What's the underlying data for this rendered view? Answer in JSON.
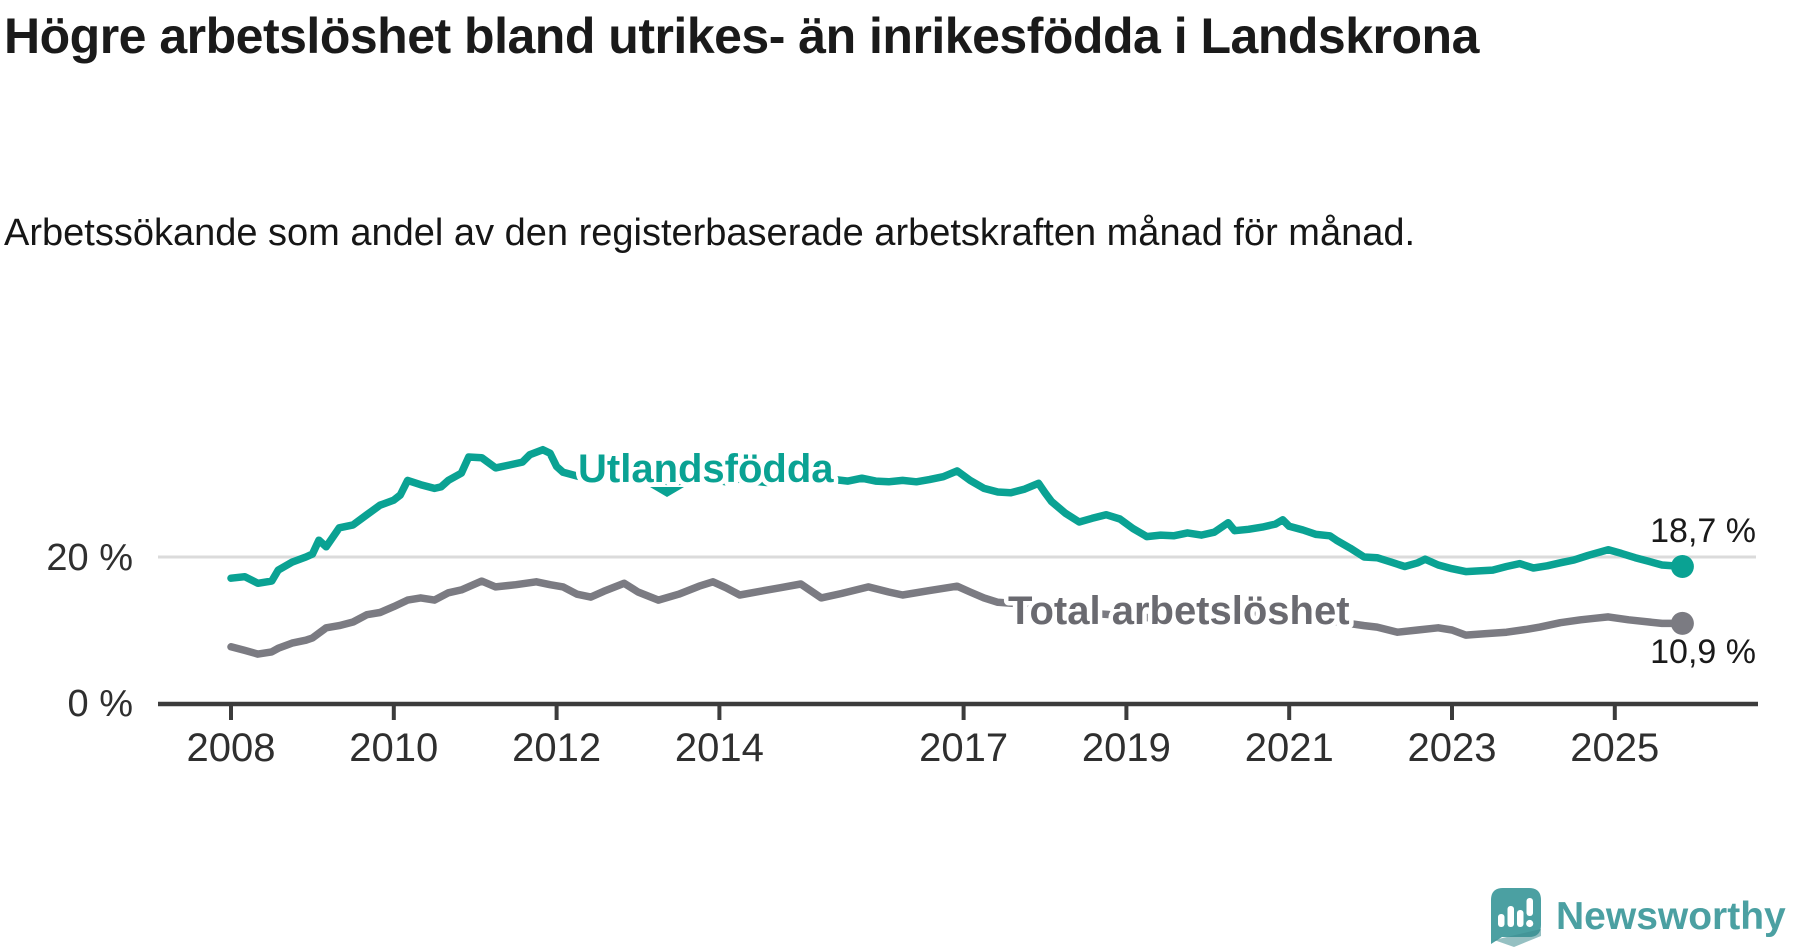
{
  "header": {
    "title": "Högre arbetslöshet bland utrikes- än inrikesfödda i Landskrona",
    "subtitle": "Arbetssökande som andel av den registerbaserade arbetskraften månad för månad."
  },
  "chart_data": {
    "type": "line",
    "unit": "%",
    "grid": "horizontal-20-only",
    "legend_position": "inline-labels-on-lines",
    "x_axis": {
      "ticks": [
        {
          "year": 2008,
          "label": "2008"
        },
        {
          "year": 2010,
          "label": "2010"
        },
        {
          "year": 2012,
          "label": "2012"
        },
        {
          "year": 2014,
          "label": "2014"
        },
        {
          "year": 2017,
          "label": "2017"
        },
        {
          "year": 2019,
          "label": "2019"
        },
        {
          "year": 2021,
          "label": "2021"
        },
        {
          "year": 2023,
          "label": "2023"
        },
        {
          "year": 2025,
          "label": "2025"
        }
      ],
      "range_years": [
        2008,
        2025.83
      ]
    },
    "y_axis": {
      "ticks": [
        {
          "value": 0,
          "label": "0 %"
        },
        {
          "value": 20,
          "label": "20 %"
        }
      ],
      "range": [
        0,
        36
      ]
    },
    "series": [
      {
        "name": "Utlandsfödda",
        "color": "#0aa293",
        "end_label": "18,7 %",
        "end_value": 18.7,
        "points": [
          [
            2008.0,
            17.1
          ],
          [
            2008.17,
            17.3
          ],
          [
            2008.33,
            16.4
          ],
          [
            2008.5,
            16.7
          ],
          [
            2008.58,
            18.2
          ],
          [
            2008.75,
            19.3
          ],
          [
            2008.92,
            20.0
          ],
          [
            2009.0,
            20.4
          ],
          [
            2009.08,
            22.3
          ],
          [
            2009.17,
            21.4
          ],
          [
            2009.33,
            24.0
          ],
          [
            2009.5,
            24.4
          ],
          [
            2009.67,
            25.8
          ],
          [
            2009.83,
            27.1
          ],
          [
            2010.0,
            27.8
          ],
          [
            2010.08,
            28.5
          ],
          [
            2010.17,
            30.5
          ],
          [
            2010.33,
            29.9
          ],
          [
            2010.5,
            29.4
          ],
          [
            2010.58,
            29.6
          ],
          [
            2010.67,
            30.5
          ],
          [
            2010.83,
            31.5
          ],
          [
            2010.92,
            33.7
          ],
          [
            2011.08,
            33.6
          ],
          [
            2011.25,
            32.2
          ],
          [
            2011.42,
            32.6
          ],
          [
            2011.58,
            33.0
          ],
          [
            2011.67,
            34.0
          ],
          [
            2011.83,
            34.7
          ],
          [
            2011.92,
            34.2
          ],
          [
            2012.0,
            32.4
          ],
          [
            2012.08,
            31.6
          ],
          [
            2012.25,
            31.1
          ],
          [
            2012.42,
            30.6
          ],
          [
            2012.58,
            30.9
          ],
          [
            2012.75,
            31.1
          ],
          [
            2012.92,
            30.7
          ],
          [
            2013.08,
            30.3
          ],
          [
            2013.25,
            30.6
          ],
          [
            2013.42,
            30.2
          ],
          [
            2013.58,
            30.5
          ],
          [
            2013.75,
            30.9
          ],
          [
            2013.92,
            30.6
          ],
          [
            2014.08,
            30.3
          ],
          [
            2014.25,
            30.7
          ],
          [
            2014.42,
            30.4
          ],
          [
            2014.58,
            30.2
          ],
          [
            2014.75,
            30.6
          ],
          [
            2014.92,
            30.9
          ],
          [
            2015.08,
            30.5
          ],
          [
            2015.25,
            30.3
          ],
          [
            2015.42,
            30.6
          ],
          [
            2015.58,
            30.4
          ],
          [
            2015.75,
            30.8
          ],
          [
            2015.92,
            30.4
          ],
          [
            2016.08,
            30.3
          ],
          [
            2016.25,
            30.5
          ],
          [
            2016.42,
            30.3
          ],
          [
            2016.58,
            30.6
          ],
          [
            2016.75,
            31.0
          ],
          [
            2016.92,
            31.8
          ],
          [
            2017.08,
            30.5
          ],
          [
            2017.25,
            29.4
          ],
          [
            2017.42,
            28.9
          ],
          [
            2017.58,
            28.8
          ],
          [
            2017.75,
            29.3
          ],
          [
            2017.92,
            30.1
          ],
          [
            2018.0,
            28.8
          ],
          [
            2018.08,
            27.6
          ],
          [
            2018.25,
            26.0
          ],
          [
            2018.42,
            24.8
          ],
          [
            2018.58,
            25.3
          ],
          [
            2018.75,
            25.8
          ],
          [
            2018.92,
            25.2
          ],
          [
            2019.08,
            23.9
          ],
          [
            2019.25,
            22.8
          ],
          [
            2019.42,
            23.0
          ],
          [
            2019.58,
            22.9
          ],
          [
            2019.75,
            23.3
          ],
          [
            2019.92,
            23.0
          ],
          [
            2020.08,
            23.4
          ],
          [
            2020.25,
            24.7
          ],
          [
            2020.33,
            23.6
          ],
          [
            2020.5,
            23.8
          ],
          [
            2020.67,
            24.1
          ],
          [
            2020.83,
            24.5
          ],
          [
            2020.92,
            25.1
          ],
          [
            2021.0,
            24.2
          ],
          [
            2021.17,
            23.7
          ],
          [
            2021.33,
            23.1
          ],
          [
            2021.5,
            22.9
          ],
          [
            2021.58,
            22.3
          ],
          [
            2021.75,
            21.2
          ],
          [
            2021.92,
            20.0
          ],
          [
            2022.08,
            19.9
          ],
          [
            2022.25,
            19.3
          ],
          [
            2022.42,
            18.7
          ],
          [
            2022.58,
            19.2
          ],
          [
            2022.67,
            19.7
          ],
          [
            2022.83,
            18.9
          ],
          [
            2023.0,
            18.4
          ],
          [
            2023.17,
            18.0
          ],
          [
            2023.33,
            18.1
          ],
          [
            2023.5,
            18.2
          ],
          [
            2023.67,
            18.7
          ],
          [
            2023.83,
            19.1
          ],
          [
            2024.0,
            18.5
          ],
          [
            2024.17,
            18.8
          ],
          [
            2024.33,
            19.2
          ],
          [
            2024.5,
            19.6
          ],
          [
            2024.67,
            20.2
          ],
          [
            2024.92,
            21.0
          ],
          [
            2025.08,
            20.5
          ],
          [
            2025.25,
            19.9
          ],
          [
            2025.42,
            19.4
          ],
          [
            2025.58,
            18.9
          ],
          [
            2025.83,
            18.7
          ]
        ]
      },
      {
        "name": "Total arbetslöshet",
        "color": "#7b7b82",
        "label_color": "#6a6a70",
        "end_label": "10,9 %",
        "end_value": 10.9,
        "points": [
          [
            2008.0,
            7.7
          ],
          [
            2008.17,
            7.2
          ],
          [
            2008.33,
            6.7
          ],
          [
            2008.5,
            7.0
          ],
          [
            2008.58,
            7.5
          ],
          [
            2008.75,
            8.2
          ],
          [
            2008.92,
            8.6
          ],
          [
            2009.0,
            8.9
          ],
          [
            2009.17,
            10.3
          ],
          [
            2009.33,
            10.6
          ],
          [
            2009.5,
            11.1
          ],
          [
            2009.67,
            12.1
          ],
          [
            2009.83,
            12.4
          ],
          [
            2010.0,
            13.2
          ],
          [
            2010.17,
            14.1
          ],
          [
            2010.33,
            14.4
          ],
          [
            2010.5,
            14.1
          ],
          [
            2010.67,
            15.1
          ],
          [
            2010.83,
            15.5
          ],
          [
            2011.08,
            16.7
          ],
          [
            2011.25,
            15.9
          ],
          [
            2011.5,
            16.2
          ],
          [
            2011.75,
            16.6
          ],
          [
            2011.92,
            16.2
          ],
          [
            2012.08,
            15.9
          ],
          [
            2012.25,
            14.9
          ],
          [
            2012.42,
            14.5
          ],
          [
            2012.58,
            15.3
          ],
          [
            2012.83,
            16.4
          ],
          [
            2013.0,
            15.2
          ],
          [
            2013.25,
            14.1
          ],
          [
            2013.5,
            14.9
          ],
          [
            2013.75,
            16.0
          ],
          [
            2013.92,
            16.6
          ],
          [
            2014.08,
            15.8
          ],
          [
            2014.25,
            14.8
          ],
          [
            2014.5,
            15.3
          ],
          [
            2014.75,
            15.8
          ],
          [
            2015.0,
            16.3
          ],
          [
            2015.25,
            14.4
          ],
          [
            2015.5,
            15.0
          ],
          [
            2015.83,
            15.9
          ],
          [
            2016.08,
            15.2
          ],
          [
            2016.25,
            14.8
          ],
          [
            2016.58,
            15.4
          ],
          [
            2016.92,
            16.0
          ],
          [
            2017.08,
            15.2
          ],
          [
            2017.25,
            14.4
          ],
          [
            2017.42,
            13.8
          ],
          [
            2017.67,
            13.6
          ],
          [
            2017.92,
            13.3
          ],
          [
            2018.17,
            12.8
          ],
          [
            2018.42,
            12.4
          ],
          [
            2018.67,
            12.2
          ],
          [
            2018.92,
            12.0
          ],
          [
            2019.17,
            11.8
          ],
          [
            2019.42,
            11.5
          ],
          [
            2019.67,
            11.4
          ],
          [
            2019.92,
            11.3
          ],
          [
            2020.17,
            11.6
          ],
          [
            2020.42,
            11.9
          ],
          [
            2020.67,
            12.1
          ],
          [
            2020.92,
            12.2
          ],
          [
            2021.17,
            11.8
          ],
          [
            2021.42,
            11.4
          ],
          [
            2021.67,
            11.0
          ],
          [
            2021.92,
            10.6
          ],
          [
            2022.08,
            10.4
          ],
          [
            2022.33,
            9.7
          ],
          [
            2022.58,
            10.0
          ],
          [
            2022.83,
            10.3
          ],
          [
            2023.0,
            10.0
          ],
          [
            2023.17,
            9.3
          ],
          [
            2023.42,
            9.5
          ],
          [
            2023.67,
            9.7
          ],
          [
            2023.92,
            10.1
          ],
          [
            2024.08,
            10.4
          ],
          [
            2024.33,
            11.0
          ],
          [
            2024.58,
            11.4
          ],
          [
            2024.75,
            11.6
          ],
          [
            2024.92,
            11.8
          ],
          [
            2025.17,
            11.4
          ],
          [
            2025.42,
            11.1
          ],
          [
            2025.58,
            10.9
          ],
          [
            2025.83,
            10.9
          ]
        ]
      }
    ]
  },
  "branding": {
    "name": "Newsworthy",
    "logo_color": "#4ba0a2",
    "logo_icon": "bar-chart-pin-with-exclamation"
  }
}
